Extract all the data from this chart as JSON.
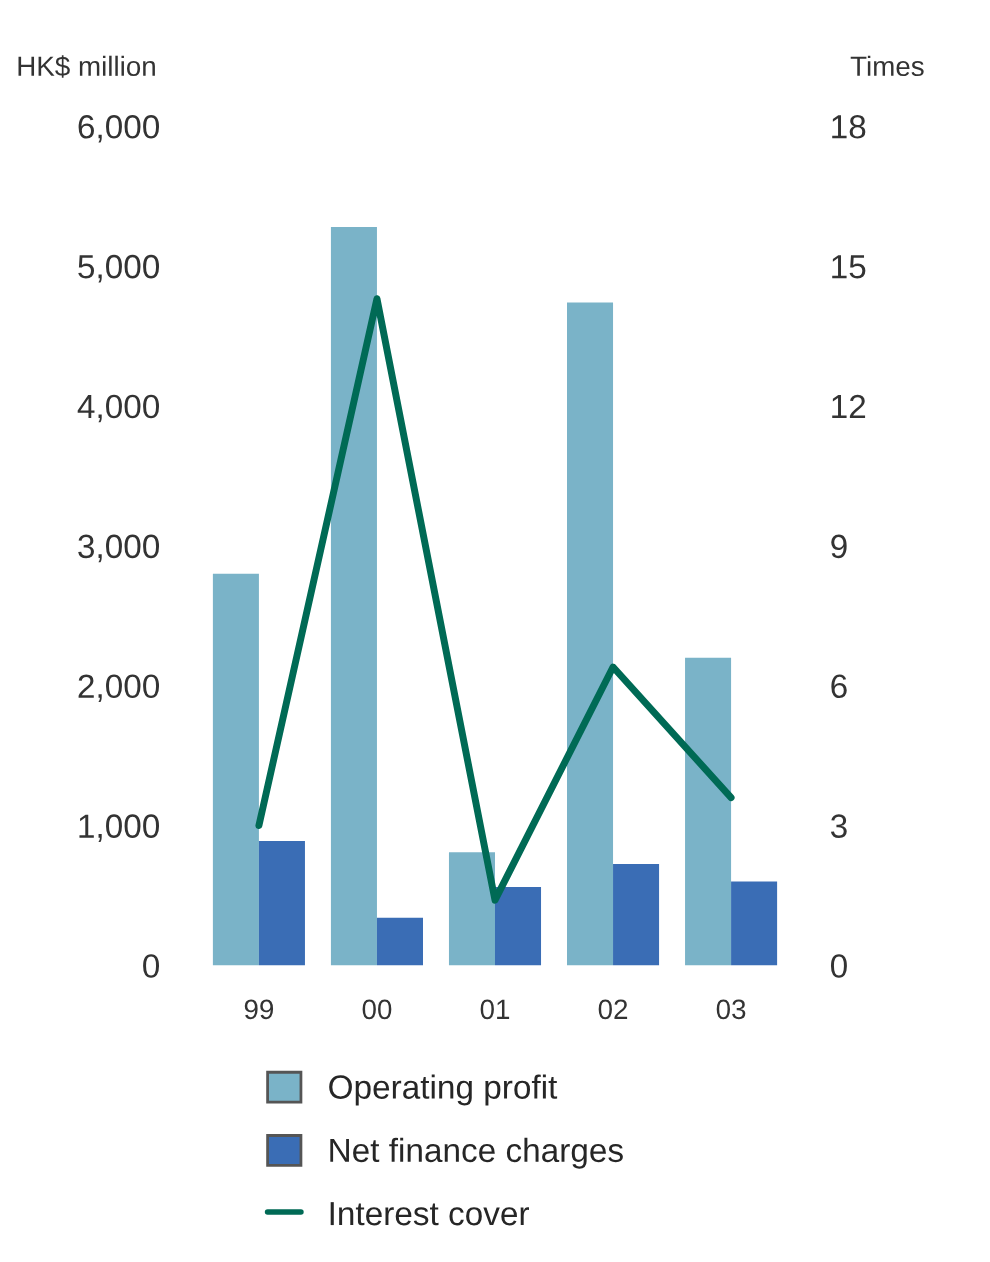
{
  "chart_data": {
    "type": "bar",
    "categories": [
      "99",
      "00",
      "01",
      "02",
      "03"
    ],
    "ylabel": "HK$ million",
    "y2label": "Times",
    "ylim": [
      0,
      6000
    ],
    "yticks": [
      {
        "value": 0,
        "label": "0"
      },
      {
        "value": 1000,
        "label": "1,000"
      },
      {
        "value": 2000,
        "label": "2,000"
      },
      {
        "value": 3000,
        "label": "3,000"
      },
      {
        "value": 4000,
        "label": "4,000"
      },
      {
        "value": 5000,
        "label": "5,000"
      },
      {
        "value": 6000,
        "label": "6,000"
      }
    ],
    "y2lim": [
      0,
      18
    ],
    "y2ticks": [
      0,
      3,
      6,
      9,
      12,
      15,
      18
    ],
    "series": [
      {
        "name": "Operating profit",
        "color": "#7ab3c8",
        "values": [
          2800,
          5280,
          810,
          4740,
          2200
        ]
      },
      {
        "name": "Net finance charges",
        "color": "#3a6db5",
        "values": [
          890,
          340,
          560,
          725,
          600
        ]
      },
      {
        "name": "Interest cover",
        "type": "line",
        "axis": "y2",
        "color": "#006a55",
        "values": [
          3.0,
          14.3,
          1.4,
          6.4,
          3.6
        ]
      }
    ],
    "legend": "bottom",
    "grid": false
  }
}
